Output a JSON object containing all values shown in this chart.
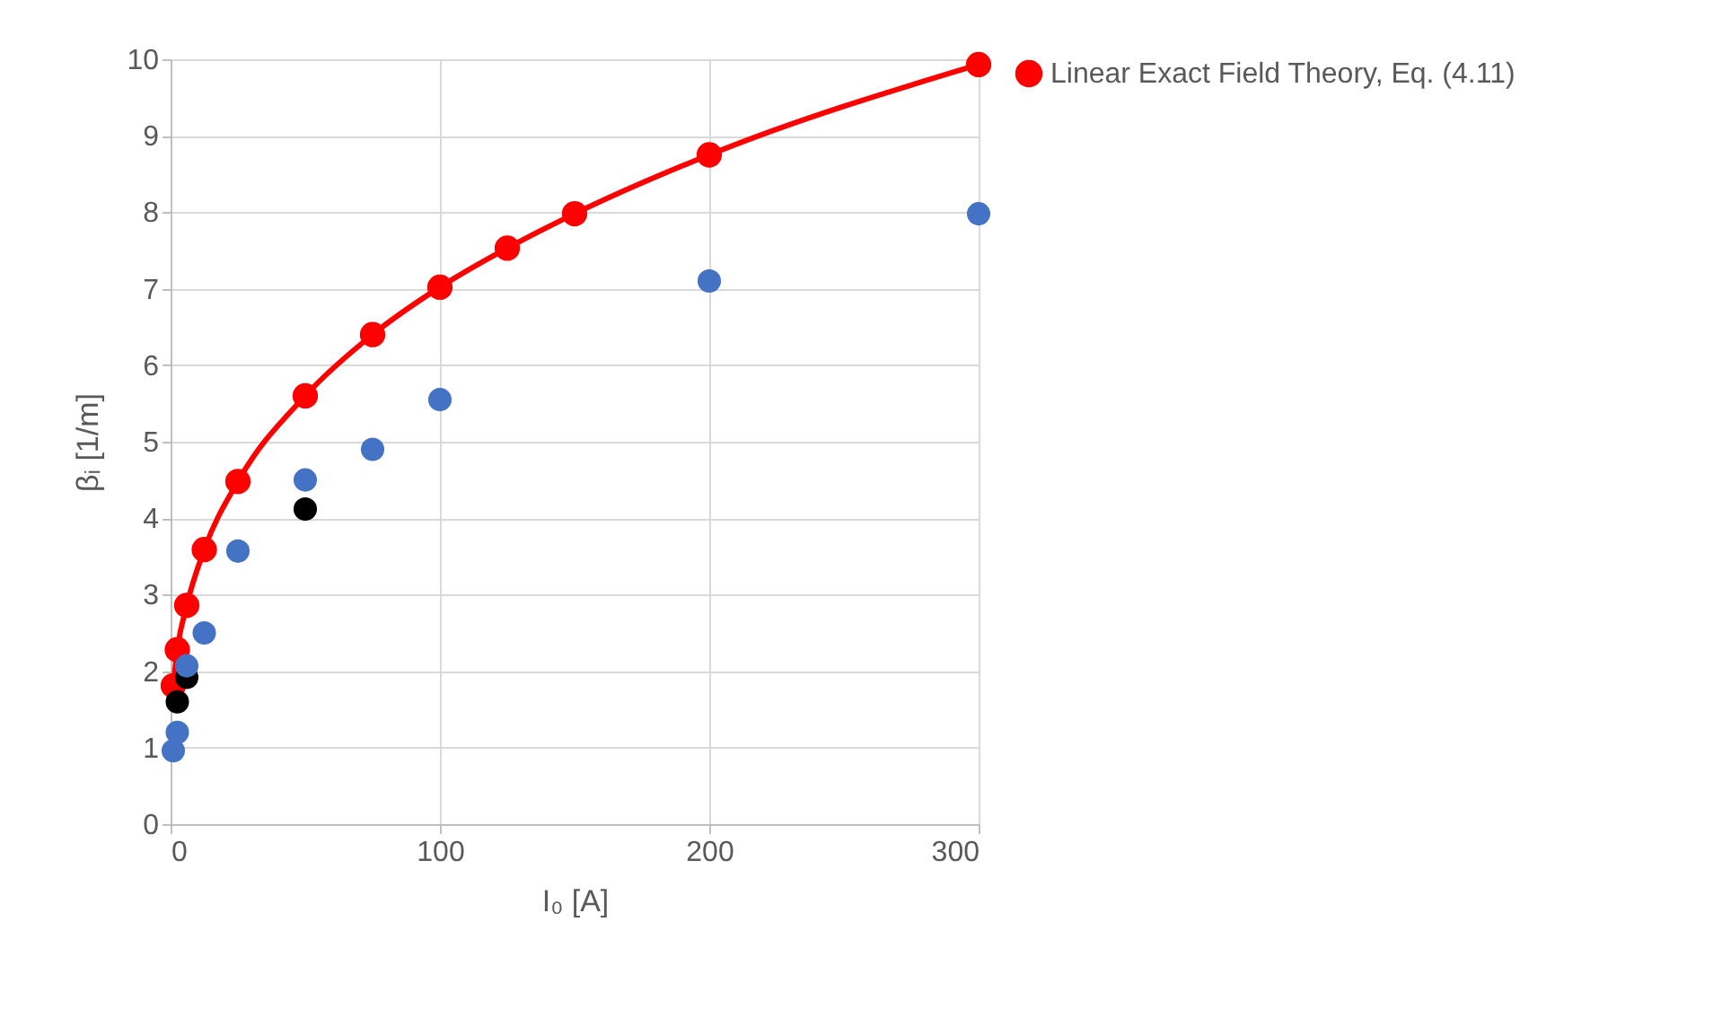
{
  "chart_data": {
    "type": "scatter",
    "xlabel": "I₀ [A]",
    "ylabel": "βᵢ [1/m]",
    "xlim": [
      0,
      300
    ],
    "xticks": [
      0,
      100,
      200,
      300
    ],
    "ylim": [
      0,
      10
    ],
    "yticks": [
      0,
      1,
      2,
      3,
      4,
      5,
      6,
      7,
      8,
      9,
      10
    ],
    "grid": true,
    "legend": "right",
    "marker": "circle",
    "series": [
      {
        "color": "#4472c4",
        "x": [
          1,
          2.5,
          6,
          12.5,
          25,
          50,
          75,
          100,
          200,
          300
        ],
        "values": [
          0.96,
          1.2,
          2.07,
          2.5,
          3.57,
          4.5,
          4.9,
          5.55,
          7.1,
          7.98
        ]
      },
      {
        "color": "#000000",
        "x": [
          2.5,
          6,
          50
        ],
        "values": [
          1.6,
          1.92,
          4.12
        ]
      },
      {
        "name": "Linear Exact Field Theory, Eq. (4.11)",
        "type": "line",
        "line_style": "solid",
        "color": "#ff0000",
        "x": [
          1,
          2.5,
          6,
          12.5,
          25,
          50,
          75,
          100,
          125,
          150,
          200,
          300
        ],
        "values": [
          1.81,
          2.28,
          2.86,
          3.59,
          4.48,
          5.6,
          6.4,
          7.02,
          7.53,
          7.98,
          8.75,
          9.93
        ]
      }
    ]
  }
}
